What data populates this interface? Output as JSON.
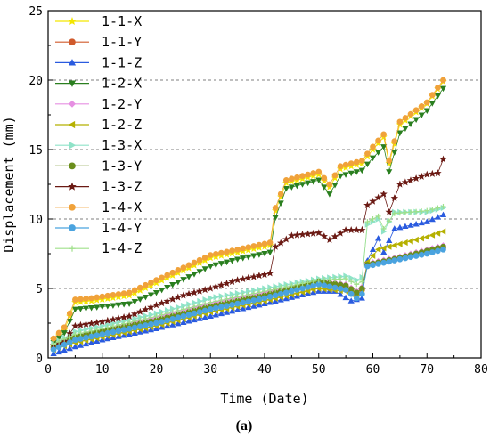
{
  "caption": "(a)",
  "chart_data": {
    "type": "line",
    "xlabel": "Time (Date)",
    "ylabel": "Displacement (mm)",
    "xlim": [
      0,
      80
    ],
    "ylim": [
      0,
      25
    ],
    "xticks": [
      0,
      10,
      20,
      30,
      40,
      50,
      60,
      70,
      80
    ],
    "yticks": [
      0,
      5,
      10,
      15,
      20,
      25
    ],
    "grid": "horizontal dashed at 5, 10, 15, 20",
    "legend_position": "top-left",
    "series": [
      {
        "name": "1-1-X",
        "color": "#f3e600",
        "marker": "star",
        "stroke": "#f3e600",
        "stroke_width": 0.8,
        "points": [
          [
            1,
            1.3
          ],
          [
            3,
            2.0
          ],
          [
            5,
            4.0
          ],
          [
            8,
            4.1
          ],
          [
            15,
            4.5
          ],
          [
            20,
            5.4
          ],
          [
            30,
            7.2
          ],
          [
            35,
            7.6
          ],
          [
            41,
            8.1
          ],
          [
            42,
            10.6
          ],
          [
            44,
            12.6
          ],
          [
            50,
            13.2
          ],
          [
            52,
            12.3
          ],
          [
            54,
            13.6
          ],
          [
            58,
            14.0
          ],
          [
            60,
            15.0
          ],
          [
            62,
            15.9
          ],
          [
            63,
            14.0
          ],
          [
            65,
            16.8
          ],
          [
            70,
            18.3
          ],
          [
            73,
            19.9
          ]
        ]
      },
      {
        "name": "1-1-Y",
        "color": "#d05a2c",
        "marker": "circle",
        "stroke": "#d05a2c",
        "stroke_width": 0.8,
        "points": [
          [
            1,
            0.7
          ],
          [
            5,
            1.4
          ],
          [
            10,
            1.8
          ],
          [
            20,
            2.6
          ],
          [
            30,
            3.6
          ],
          [
            40,
            4.4
          ],
          [
            50,
            5.4
          ],
          [
            55,
            5.0
          ],
          [
            57,
            4.5
          ],
          [
            58,
            4.9
          ],
          [
            59,
            6.7
          ],
          [
            65,
            7.2
          ],
          [
            70,
            7.6
          ],
          [
            73,
            7.9
          ]
        ]
      },
      {
        "name": "1-1-Z",
        "color": "#2a5bdf",
        "marker": "triangle-up",
        "stroke": "#2a5bdf",
        "stroke_width": 0.8,
        "points": [
          [
            1,
            0.3
          ],
          [
            5,
            0.8
          ],
          [
            10,
            1.3
          ],
          [
            20,
            2.1
          ],
          [
            30,
            3.0
          ],
          [
            40,
            3.9
          ],
          [
            50,
            4.8
          ],
          [
            53,
            4.8
          ],
          [
            56,
            4.1
          ],
          [
            58,
            4.3
          ],
          [
            59,
            7.0
          ],
          [
            61,
            8.6
          ],
          [
            62,
            7.6
          ],
          [
            64,
            9.3
          ],
          [
            70,
            9.8
          ],
          [
            73,
            10.3
          ]
        ]
      },
      {
        "name": "1-2-X",
        "color": "#2a7f1f",
        "marker": "triangle-down",
        "stroke": "#2a7f1f",
        "stroke_width": 0.8,
        "points": [
          [
            1,
            1.1
          ],
          [
            3,
            1.8
          ],
          [
            5,
            3.5
          ],
          [
            8,
            3.6
          ],
          [
            15,
            3.9
          ],
          [
            20,
            4.7
          ],
          [
            30,
            6.6
          ],
          [
            35,
            7.1
          ],
          [
            41,
            7.6
          ],
          [
            42,
            10.1
          ],
          [
            44,
            12.2
          ],
          [
            50,
            12.8
          ],
          [
            52,
            11.8
          ],
          [
            54,
            13.1
          ],
          [
            58,
            13.5
          ],
          [
            60,
            14.4
          ],
          [
            62,
            15.2
          ],
          [
            63,
            13.4
          ],
          [
            65,
            16.2
          ],
          [
            70,
            17.8
          ],
          [
            73,
            19.4
          ]
        ]
      },
      {
        "name": "1-2-Y",
        "color": "#e68fe2",
        "marker": "diamond",
        "stroke": "#e68fe2",
        "stroke_width": 0.8,
        "points": [
          [
            1,
            0.9
          ],
          [
            5,
            1.6
          ],
          [
            10,
            2.0
          ],
          [
            20,
            2.9
          ],
          [
            30,
            3.9
          ],
          [
            40,
            4.7
          ],
          [
            50,
            5.6
          ],
          [
            55,
            5.3
          ],
          [
            57,
            4.8
          ],
          [
            58,
            5.1
          ],
          [
            59,
            6.8
          ],
          [
            65,
            7.3
          ],
          [
            70,
            7.8
          ],
          [
            73,
            8.1
          ]
        ]
      },
      {
        "name": "1-2-Z",
        "color": "#b5b000",
        "marker": "triangle-left",
        "stroke": "#b5b000",
        "stroke_width": 0.8,
        "points": [
          [
            1,
            0.6
          ],
          [
            5,
            1.1
          ],
          [
            10,
            1.5
          ],
          [
            20,
            2.3
          ],
          [
            30,
            3.3
          ],
          [
            40,
            4.1
          ],
          [
            50,
            5.0
          ],
          [
            55,
            4.8
          ],
          [
            57,
            4.4
          ],
          [
            58,
            4.7
          ],
          [
            59,
            6.9
          ],
          [
            61,
            7.8
          ],
          [
            65,
            8.2
          ],
          [
            70,
            8.7
          ],
          [
            73,
            9.1
          ]
        ]
      },
      {
        "name": "1-3-X",
        "color": "#8fe3c8",
        "marker": "triangle-right",
        "stroke": "#8fe3c8",
        "stroke_width": 0.8,
        "points": [
          [
            1,
            1.0
          ],
          [
            5,
            1.9
          ],
          [
            10,
            2.3
          ],
          [
            20,
            3.2
          ],
          [
            30,
            4.3
          ],
          [
            40,
            5.0
          ],
          [
            50,
            5.7
          ],
          [
            55,
            5.9
          ],
          [
            57,
            5.6
          ],
          [
            58,
            5.8
          ],
          [
            59,
            9.6
          ],
          [
            61,
            10.0
          ],
          [
            62,
            9.1
          ],
          [
            64,
            10.5
          ],
          [
            70,
            10.5
          ],
          [
            73,
            10.8
          ]
        ]
      },
      {
        "name": "1-3-Y",
        "color": "#6b8e1c",
        "marker": "circle",
        "stroke": "#6b8e1c",
        "stroke_width": 0.8,
        "points": [
          [
            1,
            0.8
          ],
          [
            5,
            1.5
          ],
          [
            10,
            1.9
          ],
          [
            20,
            2.7
          ],
          [
            30,
            3.7
          ],
          [
            40,
            4.5
          ],
          [
            50,
            5.5
          ],
          [
            55,
            5.2
          ],
          [
            57,
            4.7
          ],
          [
            58,
            5.0
          ],
          [
            59,
            6.7
          ],
          [
            65,
            7.2
          ],
          [
            70,
            7.7
          ],
          [
            73,
            8.0
          ]
        ]
      },
      {
        "name": "1-3-Z",
        "color": "#6b1a14",
        "marker": "star",
        "stroke": "#6b1a14",
        "stroke_width": 0.8,
        "points": [
          [
            1,
            0.9
          ],
          [
            3,
            1.2
          ],
          [
            5,
            2.3
          ],
          [
            10,
            2.6
          ],
          [
            15,
            3.0
          ],
          [
            20,
            3.8
          ],
          [
            25,
            4.5
          ],
          [
            30,
            5.0
          ],
          [
            35,
            5.6
          ],
          [
            40,
            6.0
          ],
          [
            41,
            6.1
          ],
          [
            42,
            8.0
          ],
          [
            45,
            8.8
          ],
          [
            50,
            9.0
          ],
          [
            52,
            8.5
          ],
          [
            55,
            9.2
          ],
          [
            58,
            9.2
          ],
          [
            59,
            11.0
          ],
          [
            62,
            11.8
          ],
          [
            63,
            10.5
          ],
          [
            65,
            12.5
          ],
          [
            70,
            13.2
          ],
          [
            72,
            13.3
          ],
          [
            73,
            14.3
          ]
        ]
      },
      {
        "name": "1-4-X",
        "color": "#f0a23a",
        "marker": "circle",
        "stroke": "#f0a23a",
        "stroke_width": 0.8,
        "points": [
          [
            1,
            1.4
          ],
          [
            3,
            2.2
          ],
          [
            5,
            4.2
          ],
          [
            8,
            4.3
          ],
          [
            15,
            4.7
          ],
          [
            20,
            5.6
          ],
          [
            30,
            7.4
          ],
          [
            35,
            7.8
          ],
          [
            41,
            8.3
          ],
          [
            42,
            10.8
          ],
          [
            44,
            12.8
          ],
          [
            50,
            13.4
          ],
          [
            52,
            12.5
          ],
          [
            54,
            13.8
          ],
          [
            58,
            14.2
          ],
          [
            60,
            15.2
          ],
          [
            62,
            16.1
          ],
          [
            63,
            14.2
          ],
          [
            65,
            17.0
          ],
          [
            70,
            18.4
          ],
          [
            73,
            20.0
          ]
        ]
      },
      {
        "name": "1-4-Y",
        "color": "#4aa3df",
        "marker": "circle",
        "stroke": "#4aa3df",
        "stroke_width": 0.8,
        "points": [
          [
            1,
            0.6
          ],
          [
            5,
            1.3
          ],
          [
            10,
            1.7
          ],
          [
            20,
            2.5
          ],
          [
            30,
            3.5
          ],
          [
            40,
            4.3
          ],
          [
            50,
            5.3
          ],
          [
            55,
            4.9
          ],
          [
            57,
            4.3
          ],
          [
            58,
            4.6
          ],
          [
            59,
            6.6
          ],
          [
            65,
            7.1
          ],
          [
            70,
            7.5
          ],
          [
            73,
            7.8
          ]
        ]
      },
      {
        "name": "1-4-Z",
        "color": "#9fe08a",
        "marker": "plus",
        "stroke": "#9fe08a",
        "stroke_width": 0.8,
        "points": [
          [
            1,
            1.0
          ],
          [
            5,
            1.7
          ],
          [
            10,
            2.1
          ],
          [
            20,
            3.0
          ],
          [
            30,
            4.0
          ],
          [
            40,
            4.8
          ],
          [
            50,
            5.6
          ],
          [
            55,
            5.7
          ],
          [
            57,
            5.3
          ],
          [
            58,
            5.5
          ],
          [
            59,
            9.8
          ],
          [
            61,
            10.2
          ],
          [
            62,
            9.3
          ],
          [
            64,
            10.4
          ],
          [
            70,
            10.6
          ],
          [
            73,
            10.9
          ]
        ]
      }
    ]
  }
}
